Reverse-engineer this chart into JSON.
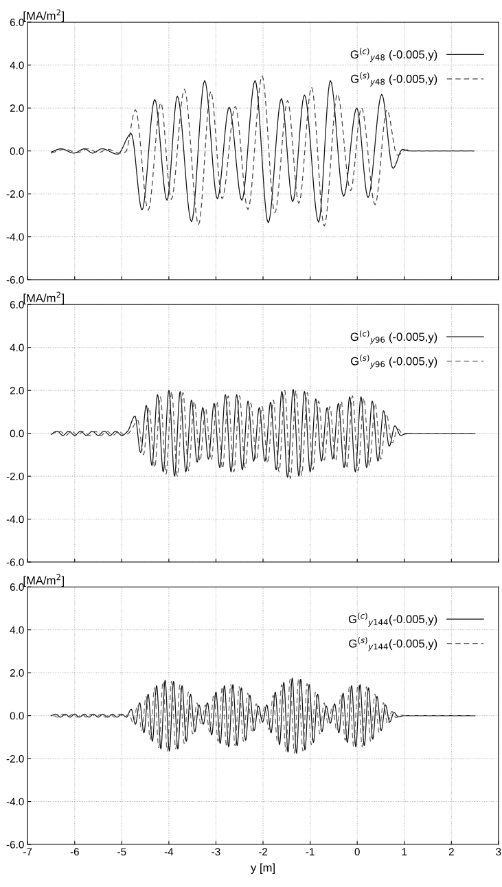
{
  "chart_data": [
    {
      "type": "line",
      "ylabel": "[MA/m$^{2}$]",
      "xlim": [
        -7,
        3
      ],
      "ylim": [
        -6,
        6
      ],
      "xticks": [
        -7,
        -6,
        -5,
        -4,
        -3,
        -2,
        -1,
        0,
        1,
        2,
        3
      ],
      "yticks": [
        {
          "value": -6,
          "label": "-6.0"
        },
        {
          "value": -4,
          "label": "-4.0"
        },
        {
          "value": -2,
          "label": "-2.0"
        },
        {
          "value": 0,
          "label": "0.0"
        },
        {
          "value": 2,
          "label": "2.0"
        },
        {
          "value": 4,
          "label": "4.0"
        },
        {
          "value": 6,
          "label": "6.0"
        }
      ],
      "grid": true,
      "legend": "top right",
      "tick_labels": "y",
      "marker": "none",
      "series": [
        {
          "name": "G$^{(c)}$$_{y48}$ (-0.005,y)",
          "color": "#111111",
          "line_style": "solid",
          "x": [
            -6.5,
            -6.29,
            -6.02,
            -5.79,
            -5.62,
            -5.42,
            -5.09,
            -4.8,
            -4.57,
            -4.3,
            -4.04,
            -3.82,
            -3.52,
            -3.24,
            -2.97,
            -2.72,
            -2.45,
            -2.17,
            -1.89,
            -1.61,
            -1.37,
            -1.12,
            -0.82,
            -0.57,
            -0.29,
            -0.01,
            0.23,
            0.52,
            0.76,
            0.96,
            1.1,
            2.48
          ],
          "values": [
            -0.05,
            0.1,
            -0.1,
            0.1,
            -0.1,
            0.1,
            -0.15,
            0.8,
            -2.75,
            2.4,
            -2.3,
            2.55,
            -3.3,
            3.28,
            -2.23,
            2.04,
            -2.3,
            3.28,
            -3.35,
            2.44,
            -2.36,
            2.61,
            -3.32,
            3.28,
            -2.11,
            2.0,
            -2.17,
            2.64,
            -0.81,
            0.07,
            0,
            0
          ]
        },
        {
          "name": "G$^{(s)}$$_{y48}$ (-0.005,y)",
          "color": "#444444",
          "line_style": "dashed",
          "x": [
            -6.5,
            -6.2,
            -5.95,
            -5.72,
            -5.5,
            -5.3,
            -5.05,
            -4.92,
            -4.71,
            -4.44,
            -4.17,
            -3.95,
            -3.67,
            -3.37,
            -3.11,
            -2.87,
            -2.59,
            -2.32,
            -2.02,
            -1.75,
            -1.48,
            -1.24,
            -0.97,
            -0.7,
            -0.42,
            -0.14,
            0.09,
            0.38,
            0.63,
            0.85,
            1.05,
            1.15,
            2.48
          ],
          "values": [
            -0.1,
            0.08,
            -0.08,
            0.1,
            -0.08,
            0.08,
            -0.1,
            -0.05,
            1.92,
            -2.76,
            2.25,
            -2.26,
            2.88,
            -3.44,
            2.78,
            -2.23,
            2.08,
            -2.73,
            3.5,
            -2.88,
            2.35,
            -2.44,
            2.97,
            -3.5,
            2.66,
            -1.85,
            2.02,
            -2.51,
            1.92,
            -0.2,
            0.05,
            0,
            0
          ]
        }
      ]
    },
    {
      "type": "line",
      "ylabel": "[MA/m$^{2}$]",
      "xlim": [
        -7,
        3
      ],
      "ylim": [
        -6,
        6
      ],
      "xticks": [
        -7,
        -6,
        -5,
        -4,
        -3,
        -2,
        -1,
        0,
        1,
        2,
        3
      ],
      "yticks": [
        {
          "value": -6,
          "label": "-6.0"
        },
        {
          "value": -4,
          "label": "-4.0"
        },
        {
          "value": -2,
          "label": "-2.0"
        },
        {
          "value": 0,
          "label": "0.0"
        },
        {
          "value": 2,
          "label": "2.0"
        },
        {
          "value": 4,
          "label": "4.0"
        },
        {
          "value": 6,
          "label": "6.0"
        }
      ],
      "grid": true,
      "legend": "top right",
      "tick_labels": "y",
      "marker": "none",
      "series": [
        {
          "name": "G$^{(c)}$$_{y96}$ (-0.005,y)",
          "color": "#111111",
          "line_style": "solid",
          "x": [
            -6.5,
            -6.375,
            -6.25,
            -6.125,
            -6.0,
            -5.875,
            -5.75,
            -5.625,
            -5.5,
            -5.375,
            -5.25,
            -5.125,
            -5.0,
            -4.875,
            -4.72,
            -4.6,
            -4.48,
            -4.36,
            -4.24,
            -4.12,
            -4.0,
            -3.88,
            -3.76,
            -3.64,
            -3.52,
            -3.4,
            -3.28,
            -3.16,
            -3.04,
            -2.92,
            -2.8,
            -2.68,
            -2.56,
            -2.44,
            -2.32,
            -2.2,
            -2.08,
            -1.96,
            -1.84,
            -1.72,
            -1.6,
            -1.48,
            -1.36,
            -1.24,
            -1.12,
            -1.0,
            -0.88,
            -0.76,
            -0.64,
            -0.52,
            -0.4,
            -0.28,
            -0.16,
            -0.04,
            0.08,
            0.2,
            0.32,
            0.44,
            0.56,
            0.68,
            0.8,
            0.92,
            1.05,
            2.5
          ],
          "values": [
            -0.05,
            0.1,
            -0.1,
            0.1,
            -0.1,
            0.1,
            -0.1,
            0.1,
            -0.1,
            0.1,
            -0.1,
            0.1,
            -0.1,
            0.1,
            0.8,
            -0.9,
            1.3,
            -1.5,
            1.8,
            -1.8,
            2.0,
            -2.0,
            1.95,
            -1.8,
            1.55,
            -1.35,
            1.2,
            -1.2,
            1.4,
            -1.6,
            1.8,
            -1.8,
            1.8,
            -1.7,
            1.5,
            -1.3,
            1.2,
            -1.3,
            1.45,
            -1.7,
            1.95,
            -2.05,
            2.05,
            -2.0,
            1.95,
            -1.8,
            1.6,
            -1.3,
            1.2,
            -1.2,
            1.4,
            -1.6,
            1.7,
            -1.8,
            1.7,
            -1.6,
            1.5,
            -1.3,
            1.05,
            -0.6,
            0.35,
            -0.1,
            0,
            0
          ]
        },
        {
          "name": "G$^{(s)}$$_{y96}$ (-0.005,y)",
          "color": "#555555",
          "line_style": "dashed",
          "x": [
            -6.5,
            -6.315,
            -6.19,
            -6.065,
            -5.94,
            -5.815,
            -5.69,
            -5.565,
            -5.44,
            -5.315,
            -5.19,
            -5.065,
            -4.94,
            -4.815,
            -4.66,
            -4.54,
            -4.42,
            -4.3,
            -4.18,
            -4.06,
            -3.94,
            -3.82,
            -3.7,
            -3.58,
            -3.46,
            -3.34,
            -3.22,
            -3.1,
            -2.98,
            -2.86,
            -2.74,
            -2.62,
            -2.5,
            -2.38,
            -2.26,
            -2.14,
            -2.02,
            -1.9,
            -1.78,
            -1.66,
            -1.54,
            -1.42,
            -1.3,
            -1.18,
            -1.06,
            -0.94,
            -0.82,
            -0.7,
            -0.58,
            -0.46,
            -0.34,
            -0.22,
            -0.1,
            0.02,
            0.14,
            0.26,
            0.38,
            0.5,
            0.62,
            0.74,
            0.86,
            0.98,
            1.1,
            2.5
          ],
          "values": [
            -0.05,
            0.1,
            -0.1,
            0.1,
            -0.1,
            0.1,
            -0.1,
            0.1,
            -0.1,
            0.1,
            -0.1,
            0.1,
            -0.1,
            0.1,
            0.6,
            -1.0,
            1.2,
            -1.6,
            1.7,
            -1.9,
            1.95,
            -2.0,
            1.9,
            -1.75,
            1.5,
            -1.3,
            1.15,
            -1.25,
            1.5,
            -1.65,
            1.75,
            -1.8,
            1.75,
            -1.6,
            1.4,
            -1.25,
            1.25,
            -1.4,
            1.55,
            -1.8,
            2.0,
            -2.1,
            2.0,
            -1.95,
            1.9,
            -1.7,
            1.5,
            -1.25,
            1.25,
            -1.3,
            1.5,
            -1.65,
            1.75,
            -1.75,
            1.65,
            -1.5,
            1.4,
            -1.2,
            0.9,
            -0.45,
            0.2,
            -0.05,
            0,
            0
          ]
        }
      ]
    },
    {
      "type": "line",
      "ylabel": "[MA/m$^{2}$]",
      "xlabel": "y [m]",
      "xlim": [
        -7,
        3
      ],
      "ylim": [
        -6,
        6
      ],
      "xticks": [
        -7,
        -6,
        -5,
        -4,
        -3,
        -2,
        -1,
        0,
        1,
        2,
        3
      ],
      "yticks": [
        {
          "value": -6,
          "label": "-6.0"
        },
        {
          "value": -4,
          "label": "-4.0"
        },
        {
          "value": -2,
          "label": "-2.0"
        },
        {
          "value": 0,
          "label": "0.0"
        },
        {
          "value": 2,
          "label": "2.0"
        },
        {
          "value": 4,
          "label": "4.0"
        },
        {
          "value": 6,
          "label": "6.0"
        }
      ],
      "grid": true,
      "legend": "top right",
      "marker": "none",
      "series": [
        {
          "name": "G$^{(c)}$$_{y144}$(-0.005,y)",
          "color": "#111111",
          "line_style": "solid",
          "x": [
            -6.5,
            -6.4,
            -6.3,
            -6.2,
            -6.1,
            -6.0,
            -5.9,
            -5.8,
            -5.7,
            -5.6,
            -5.5,
            -5.4,
            -5.3,
            -5.2,
            -5.1,
            -5.0,
            -4.9,
            -4.8,
            -4.71,
            -4.62,
            -4.53,
            -4.44,
            -4.35,
            -4.26,
            -4.17,
            -4.08,
            -3.99,
            -3.9,
            -3.81,
            -3.72,
            -3.63,
            -3.54,
            -3.45,
            -3.36,
            -3.27,
            -3.18,
            -3.09,
            -3.0,
            -2.91,
            -2.82,
            -2.73,
            -2.64,
            -2.55,
            -2.46,
            -2.37,
            -2.28,
            -2.19,
            -2.1,
            -2.01,
            -1.92,
            -1.83,
            -1.74,
            -1.65,
            -1.56,
            -1.47,
            -1.38,
            -1.29,
            -1.2,
            -1.11,
            -1.02,
            -0.93,
            -0.84,
            -0.75,
            -0.66,
            -0.57,
            -0.48,
            -0.39,
            -0.3,
            -0.21,
            -0.12,
            -0.03,
            0.06,
            0.15,
            0.24,
            0.33,
            0.42,
            0.51,
            0.6,
            0.69,
            0.78,
            0.87,
            1.0,
            2.5
          ],
          "values": [
            0,
            0.07,
            -0.07,
            0.07,
            -0.07,
            0.07,
            -0.07,
            0.07,
            -0.07,
            0.07,
            -0.07,
            0.07,
            -0.07,
            0.07,
            -0.07,
            0.07,
            -0.07,
            0.3,
            -0.4,
            0.6,
            -0.8,
            1.0,
            -1.2,
            1.4,
            -1.55,
            1.65,
            -1.65,
            1.6,
            -1.55,
            1.4,
            -1.2,
            1.0,
            -0.75,
            0.5,
            -0.4,
            0.6,
            -0.9,
            1.1,
            -1.3,
            1.4,
            -1.45,
            1.45,
            -1.4,
            1.3,
            -1.15,
            0.95,
            -0.7,
            0.45,
            -0.3,
            0.5,
            -0.8,
            1.1,
            -1.35,
            1.55,
            -1.7,
            1.75,
            -1.75,
            1.7,
            -1.6,
            1.45,
            -1.25,
            1.0,
            -0.75,
            0.45,
            -0.35,
            0.55,
            -0.8,
            1.05,
            -1.25,
            1.4,
            -1.45,
            1.45,
            -1.4,
            1.3,
            -1.1,
            0.9,
            -0.7,
            0.5,
            -0.3,
            0.15,
            -0.05,
            0,
            0
          ]
        },
        {
          "name": "G$^{(s)}$$_{y144}$(-0.005,y)",
          "color": "#666666",
          "line_style": "dashed",
          "x": [
            -6.45,
            -6.35,
            -6.25,
            -6.15,
            -6.05,
            -5.95,
            -5.85,
            -5.75,
            -5.65,
            -5.55,
            -5.45,
            -5.35,
            -5.25,
            -5.15,
            -5.05,
            -4.95,
            -4.85,
            -4.755,
            -4.665,
            -4.575,
            -4.485,
            -4.395,
            -4.305,
            -4.215,
            -4.125,
            -4.035,
            -3.945,
            -3.855,
            -3.765,
            -3.675,
            -3.585,
            -3.495,
            -3.405,
            -3.315,
            -3.225,
            -3.135,
            -3.045,
            -2.955,
            -2.865,
            -2.775,
            -2.685,
            -2.595,
            -2.505,
            -2.415,
            -2.325,
            -2.235,
            -2.145,
            -2.055,
            -1.965,
            -1.875,
            -1.785,
            -1.695,
            -1.605,
            -1.515,
            -1.425,
            -1.335,
            -1.245,
            -1.155,
            -1.065,
            -0.975,
            -0.885,
            -0.795,
            -0.705,
            -0.615,
            -0.525,
            -0.435,
            -0.345,
            -0.255,
            -0.165,
            -0.075,
            0.015,
            0.105,
            0.195,
            0.285,
            0.375,
            0.465,
            0.555,
            0.645,
            0.735,
            0.825,
            0.915,
            1.05,
            2.5
          ],
          "values": [
            0,
            -0.07,
            0.07,
            -0.07,
            0.07,
            -0.07,
            0.07,
            -0.07,
            0.07,
            -0.07,
            0.07,
            -0.07,
            0.07,
            -0.07,
            0.07,
            -0.07,
            0.07,
            -0.35,
            0.5,
            -0.7,
            0.9,
            -1.1,
            1.3,
            -1.5,
            1.6,
            -1.65,
            1.6,
            -1.55,
            1.45,
            -1.3,
            1.1,
            -0.85,
            0.6,
            -0.45,
            0.5,
            -0.75,
            1.0,
            -1.2,
            1.35,
            -1.45,
            1.45,
            -1.4,
            1.35,
            -1.2,
            1.05,
            -0.8,
            0.55,
            -0.35,
            0.4,
            -0.65,
            0.95,
            -1.2,
            1.45,
            -1.65,
            1.7,
            -1.75,
            1.75,
            -1.65,
            1.5,
            -1.35,
            1.1,
            -0.85,
            0.6,
            -0.4,
            0.45,
            -0.7,
            0.95,
            -1.15,
            1.35,
            -1.45,
            1.45,
            -1.45,
            1.35,
            -1.2,
            1.0,
            -0.8,
            0.6,
            -0.4,
            0.2,
            -0.1,
            0.03,
            0,
            0
          ]
        }
      ]
    }
  ]
}
